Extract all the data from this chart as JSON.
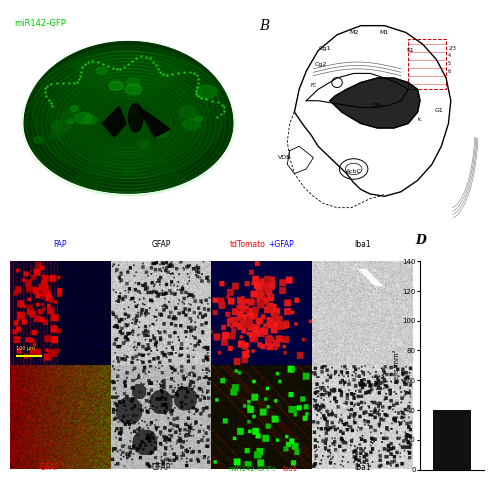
{
  "panel_A_label": "miR142-GFP",
  "panel_B_label": "B",
  "panel_D_label": "D",
  "top_labels": [
    "FAP",
    "GFAP",
    "tdTomato+GFAP",
    "Iba1"
  ],
  "bot_labels": [
    "-GFAP",
    "GFAP",
    "miR142-GFP+Iba1",
    "Iba1"
  ],
  "bar_ylabel": "cells/mm²",
  "bar_ylim": [
    0,
    140
  ],
  "bar_yticks": [
    0,
    20,
    40,
    60,
    80,
    100,
    120,
    140
  ],
  "bar_value": 40,
  "bar_color": "#111111",
  "label_color_A": "#00cc00",
  "scale_bar_text": "100 μm"
}
